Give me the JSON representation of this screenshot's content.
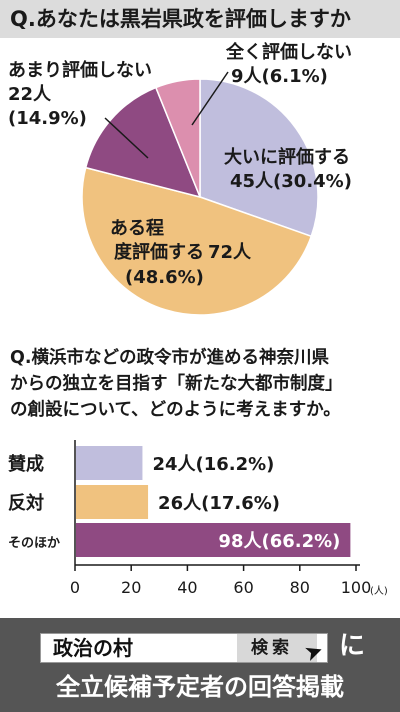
{
  "q1": {
    "title": "Q.あなたは黒岩県政を評価しますか"
  },
  "q2": {
    "title_lines": [
      "Q.横浜市などの政令市が進める神奈川県",
      "からの独立を目指す「新たな大都市制度」",
      "の創設について、どのように考えますか。"
    ]
  },
  "footer": {
    "search_text": "政治の村",
    "search_button": "検索",
    "particle": "に",
    "line2": "全立候補予定者の回答掲載",
    "cursor_icon": "cursor-arrow-icon"
  },
  "chart_data": [
    {
      "type": "pie",
      "title": "Q.あなたは黒岩県政を評価しますか",
      "slices": [
        {
          "name": "大いに評価する",
          "count": 45,
          "count_label": "45人",
          "percent": 30.4,
          "percent_label": "(30.4%)",
          "color": "#c0bedd"
        },
        {
          "name": "ある程度評価する",
          "count": 72,
          "count_label": "72人",
          "percent": 48.6,
          "percent_label": "(48.6%)",
          "color": "#f0c27f"
        },
        {
          "name": "あまり評価しない",
          "count": 22,
          "count_label": "22人",
          "percent": 14.9,
          "percent_label": "(14.9%)",
          "color": "#8f4a82"
        },
        {
          "name": "全く評価しない",
          "count": 9,
          "count_label": "9人",
          "percent": 6.1,
          "percent_label": "(6.1%)",
          "color": "#dc8fae"
        }
      ]
    },
    {
      "type": "bar",
      "orientation": "horizontal",
      "categories": [
        "賛成",
        "反対",
        "そのほか"
      ],
      "values": [
        24,
        26,
        98
      ],
      "value_labels": [
        "24人(16.2%)",
        "26人(17.6%)",
        "98人(66.2%)"
      ],
      "colors": [
        "#c0bedd",
        "#f0c27f",
        "#8f4a82"
      ],
      "xlim": [
        0,
        100
      ],
      "xticks": [
        0,
        20,
        40,
        60,
        80,
        100
      ],
      "xunit": "(人)",
      "grid": false
    }
  ]
}
